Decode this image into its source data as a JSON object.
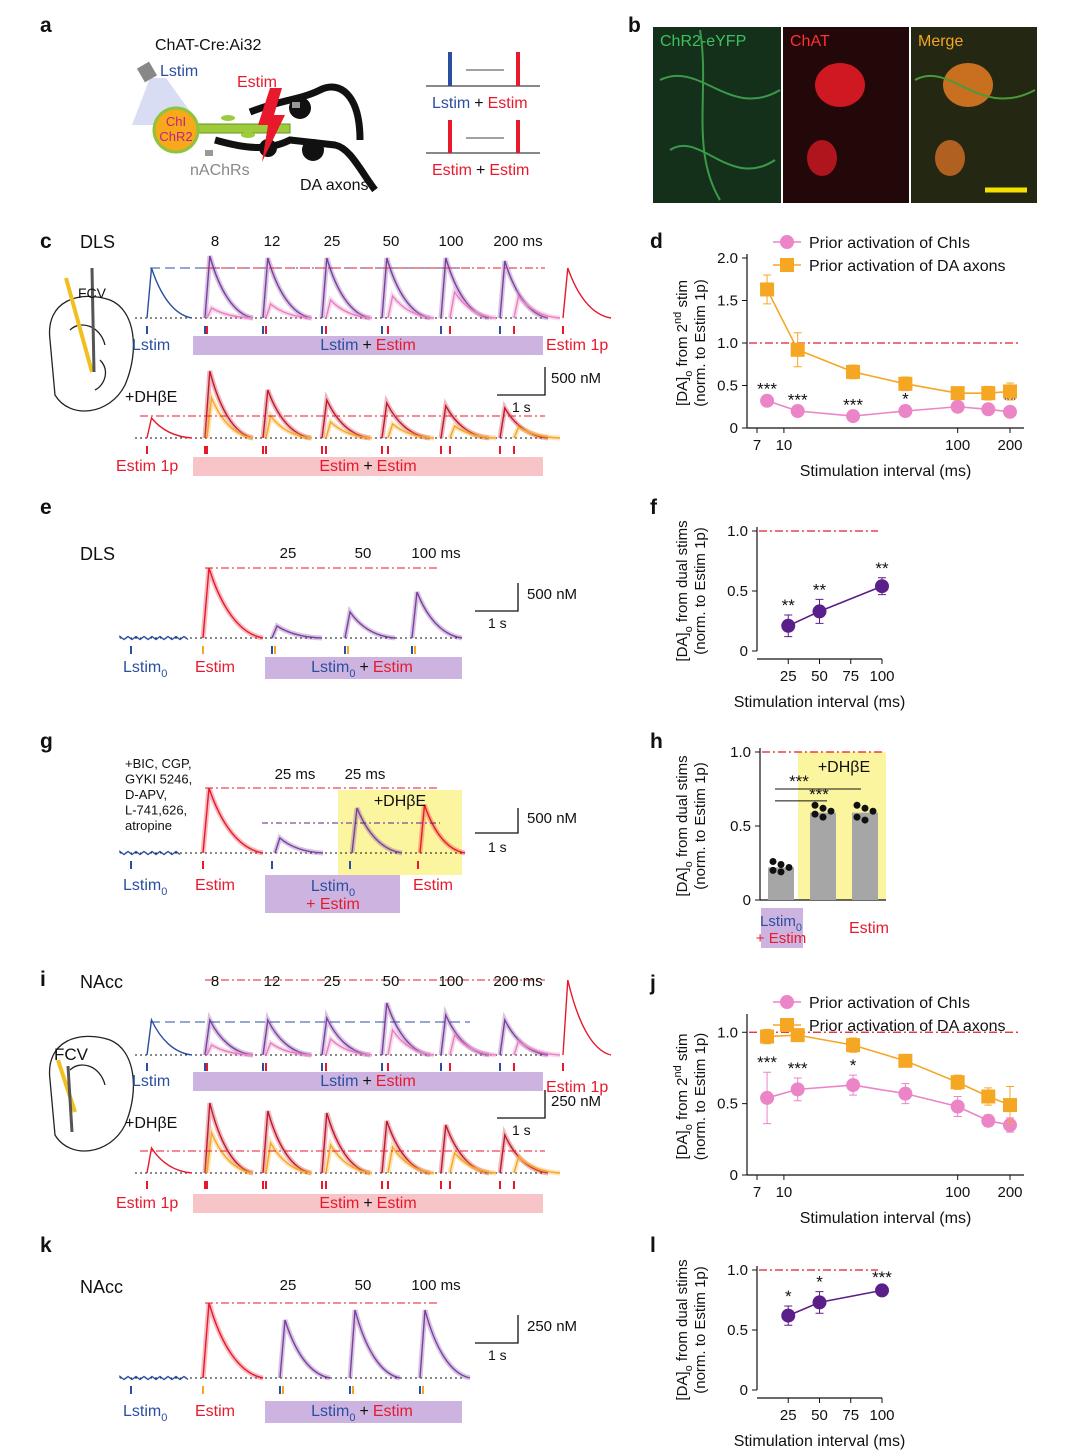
{
  "panels": {
    "a": {
      "letter": "a",
      "title": "ChAT-Cre:Ai32",
      "lstim": "Lstim",
      "estim": "Estim",
      "cell": [
        "ChI",
        "ChR2"
      ],
      "receptor": "nAChRs",
      "axons": "DA axons",
      "protocol_1": [
        "Lstim",
        "+",
        "Estim"
      ],
      "protocol_2": [
        "Estim",
        "+",
        "Estim"
      ]
    },
    "b": {
      "letter": "b",
      "channels": [
        "ChR2-eYFP",
        "ChAT",
        "Merge"
      ]
    },
    "c": {
      "letter": "c",
      "region": "DLS",
      "intervals": [
        "8",
        "12",
        "25",
        "50",
        "100",
        "200 ms"
      ],
      "probe": "FCV",
      "row_1": {
        "first": "Lstim",
        "pair": [
          "Lstim",
          "+",
          "Estim"
        ],
        "last": "Estim 1p"
      },
      "drug": "+DHβE",
      "scale_y": "500 nM",
      "scale_x": "1 s",
      "row_2": {
        "first": "Estim 1p",
        "pair": [
          "Estim",
          "+",
          "Estim"
        ]
      }
    },
    "d": {
      "letter": "d"
    },
    "e": {
      "letter": "e",
      "region": "DLS",
      "intervals": [
        "25",
        "50",
        "100 ms"
      ],
      "scale_y": "500 nM",
      "scale_x": "1 s",
      "first": {
        "text": "Lstim",
        "sub": "0"
      },
      "second": "Estim",
      "pair": {
        "lstim": "Lstim",
        "sub": "0",
        "plus": "+",
        "estim": "Estim"
      }
    },
    "f": {
      "letter": "f"
    },
    "g": {
      "letter": "g",
      "drugs": [
        "+BIC, CGP,",
        "GYKI 5246,",
        "D-APV,",
        "L-741,626,",
        "atropine"
      ],
      "intervals": [
        "25 ms",
        "25 ms"
      ],
      "drug": "+DHβE",
      "scale_y": "500 nM",
      "scale_x": "1 s",
      "first": {
        "text": "Lstim",
        "sub": "0"
      },
      "second": "Estim",
      "pair": {
        "lstim": "Lstim",
        "sub": "0",
        "plus": "+ Estim"
      },
      "last": "Estim"
    },
    "h": {
      "letter": "h"
    },
    "i": {
      "letter": "i",
      "region": "NAcc",
      "intervals": [
        "8",
        "12",
        "25",
        "50",
        "100",
        "200 ms"
      ],
      "probe": "FCV",
      "row_1": {
        "first": "Lstim",
        "pair": [
          "Lstim",
          "+",
          "Estim"
        ],
        "last": "Estim 1p"
      },
      "drug": "+DHβE",
      "scale_y": "250 nM",
      "scale_x": "1 s",
      "row_2": {
        "first": "Estim 1p",
        "pair": [
          "Estim",
          "+",
          "Estim"
        ]
      }
    },
    "j": {
      "letter": "j"
    },
    "k": {
      "letter": "k",
      "region": "NAcc",
      "intervals": [
        "25",
        "50",
        "100 ms"
      ],
      "scale_y": "250 nM",
      "scale_x": "1 s",
      "first": {
        "text": "Lstim",
        "sub": "0"
      },
      "second": "Estim",
      "pair": {
        "lstim": "Lstim",
        "sub": "0",
        "plus": "+",
        "estim": "Estim"
      }
    },
    "l": {
      "letter": "l"
    }
  },
  "chart_data": [
    {
      "type": "line",
      "log_x": true,
      "xlabel": "Stimulation interval (ms)",
      "ylabel": {
        "line1": [
          "[DA]",
          "o",
          " from 2",
          "nd",
          " stim"
        ],
        "line2": "(norm. to Estim 1p)"
      },
      "xlim": [
        7,
        200
      ],
      "xticks": [
        7,
        10,
        100,
        200
      ],
      "ylim": [
        0,
        2
      ],
      "yticks": [
        0,
        0.5,
        {
          "value": 1,
          "label": "1.0"
        },
        1.5,
        {
          "value": 2,
          "label": "2.0"
        }
      ],
      "reference_line": 1,
      "reference_color": "#e8192c",
      "legend": "top",
      "series": [
        {
          "name": "Prior activation of ChIs",
          "color": "#ec84c8",
          "marker": "circle",
          "x": [
            8,
            12,
            25,
            50,
            100,
            150,
            200
          ],
          "values": [
            0.32,
            0.2,
            0.14,
            0.2,
            0.25,
            0.22,
            0.19
          ],
          "errors": [
            0.03,
            0.02,
            0.02,
            0.03,
            0.03,
            0.03,
            0.03
          ],
          "annotations": [
            "***",
            "***",
            "***",
            "*",
            null,
            null,
            "**"
          ]
        },
        {
          "name": "Prior activation of DA axons",
          "color": "#f5a623",
          "marker": "square",
          "x": [
            8,
            12,
            25,
            50,
            100,
            150,
            200
          ],
          "values": [
            1.63,
            0.92,
            0.66,
            0.52,
            0.41,
            0.41,
            0.43
          ],
          "errors": [
            0.17,
            0.2,
            0.08,
            0.08,
            0.05,
            0.08,
            0.1
          ]
        }
      ]
    },
    {
      "type": "line",
      "log_x": false,
      "xlabel": "Stimulation interval (ms)",
      "ylabel": {
        "line1": [
          "[DA]",
          "o",
          " from dual stims"
        ],
        "line2": "(norm. to Estim 1p)"
      },
      "xlim": [
        0,
        100
      ],
      "xticks": [
        25,
        50,
        75,
        100
      ],
      "ylim": [
        0,
        1
      ],
      "yticks": [
        0,
        0.5,
        {
          "value": 1,
          "label": "1.0"
        }
      ],
      "reference_line": 1,
      "reference_color": "#e8192c",
      "series": [
        {
          "color": "#5b1f8a",
          "marker": "circle",
          "x": [
            25,
            50,
            100
          ],
          "values": [
            0.21,
            0.33,
            0.54
          ],
          "errors": [
            0.09,
            0.1,
            0.07
          ],
          "annotations": [
            "**",
            "**",
            "**"
          ]
        }
      ]
    },
    {
      "type": "bar",
      "ylabel": {
        "line1": [
          "[DA]",
          "o",
          " from dual stims"
        ],
        "line2": "(norm. to Estim 1p)"
      },
      "categories": [
        {
          "lstim": "Lstim",
          "sub": "0",
          "estim": "+ Estim"
        },
        null,
        "Estim"
      ],
      "values": [
        0.22,
        0.59,
        0.59
      ],
      "color": "#a6a6a6",
      "points": [
        [
          0.26,
          0.24,
          0.22,
          0.2,
          0.19
        ],
        [
          0.64,
          0.62,
          0.6,
          0.58,
          0.56
        ],
        [
          0.64,
          0.62,
          0.6,
          0.56,
          0.54
        ]
      ],
      "ylim": [
        0,
        1
      ],
      "yticks": [
        0,
        0.5,
        {
          "value": 1,
          "label": "1.0"
        }
      ],
      "reference_line": 1,
      "reference_color": "#e8192c",
      "drug": "+DHβE",
      "drug_color": "#fbf5a0",
      "significance": [
        "***",
        "***"
      ]
    },
    {
      "type": "line",
      "log_x": true,
      "xlabel": "Stimulation interval (ms)",
      "ylabel": {
        "line1": [
          "[DA]",
          "o",
          " from 2",
          "nd",
          " stim"
        ],
        "line2": "(norm. to Estim 1p)"
      },
      "xlim": [
        7,
        200
      ],
      "xticks": [
        7,
        10,
        100,
        200
      ],
      "ylim": [
        0,
        1.1
      ],
      "yticks": [
        0,
        0.5,
        {
          "value": 1,
          "label": "1.0"
        }
      ],
      "reference_line": 1,
      "reference_color": "#e8192c",
      "legend": "top",
      "series": [
        {
          "name": "Prior activation of ChIs",
          "color": "#ec84c8",
          "marker": "circle",
          "x": [
            8,
            12,
            25,
            50,
            100,
            150,
            200
          ],
          "values": [
            0.54,
            0.6,
            0.63,
            0.57,
            0.48,
            0.38,
            0.35
          ],
          "errors": [
            0.18,
            0.08,
            0.07,
            0.07,
            0.07,
            0.04,
            0.05
          ],
          "annotations": [
            "***",
            "***",
            "*",
            null,
            null,
            null,
            null
          ]
        },
        {
          "name": "Prior activation of DA axons",
          "color": "#f5a623",
          "marker": "square",
          "x": [
            8,
            12,
            25,
            50,
            100,
            150,
            200
          ],
          "values": [
            0.97,
            0.98,
            0.91,
            0.8,
            0.65,
            0.55,
            0.49
          ],
          "errors": [
            0.05,
            0.04,
            0.05,
            0.03,
            0.05,
            0.06,
            0.13
          ]
        }
      ]
    },
    {
      "type": "line",
      "log_x": false,
      "xlabel": "Stimulation interval (ms)",
      "ylabel": {
        "line1": [
          "[DA]",
          "o",
          " from dual stims"
        ],
        "line2": "(norm. to Estim 1p)"
      },
      "xlim": [
        0,
        100
      ],
      "xticks": [
        25,
        50,
        75,
        100
      ],
      "ylim": [
        0,
        1
      ],
      "yticks": [
        0,
        0.5,
        {
          "value": 1,
          "label": "1.0"
        }
      ],
      "reference_line": 1,
      "reference_color": "#e8192c",
      "series": [
        {
          "color": "#5b1f8a",
          "marker": "circle",
          "x": [
            25,
            50,
            100
          ],
          "values": [
            0.62,
            0.73,
            0.83
          ],
          "errors": [
            0.08,
            0.09,
            0.03
          ],
          "annotations": [
            "*",
            "*",
            "***"
          ]
        }
      ]
    }
  ]
}
